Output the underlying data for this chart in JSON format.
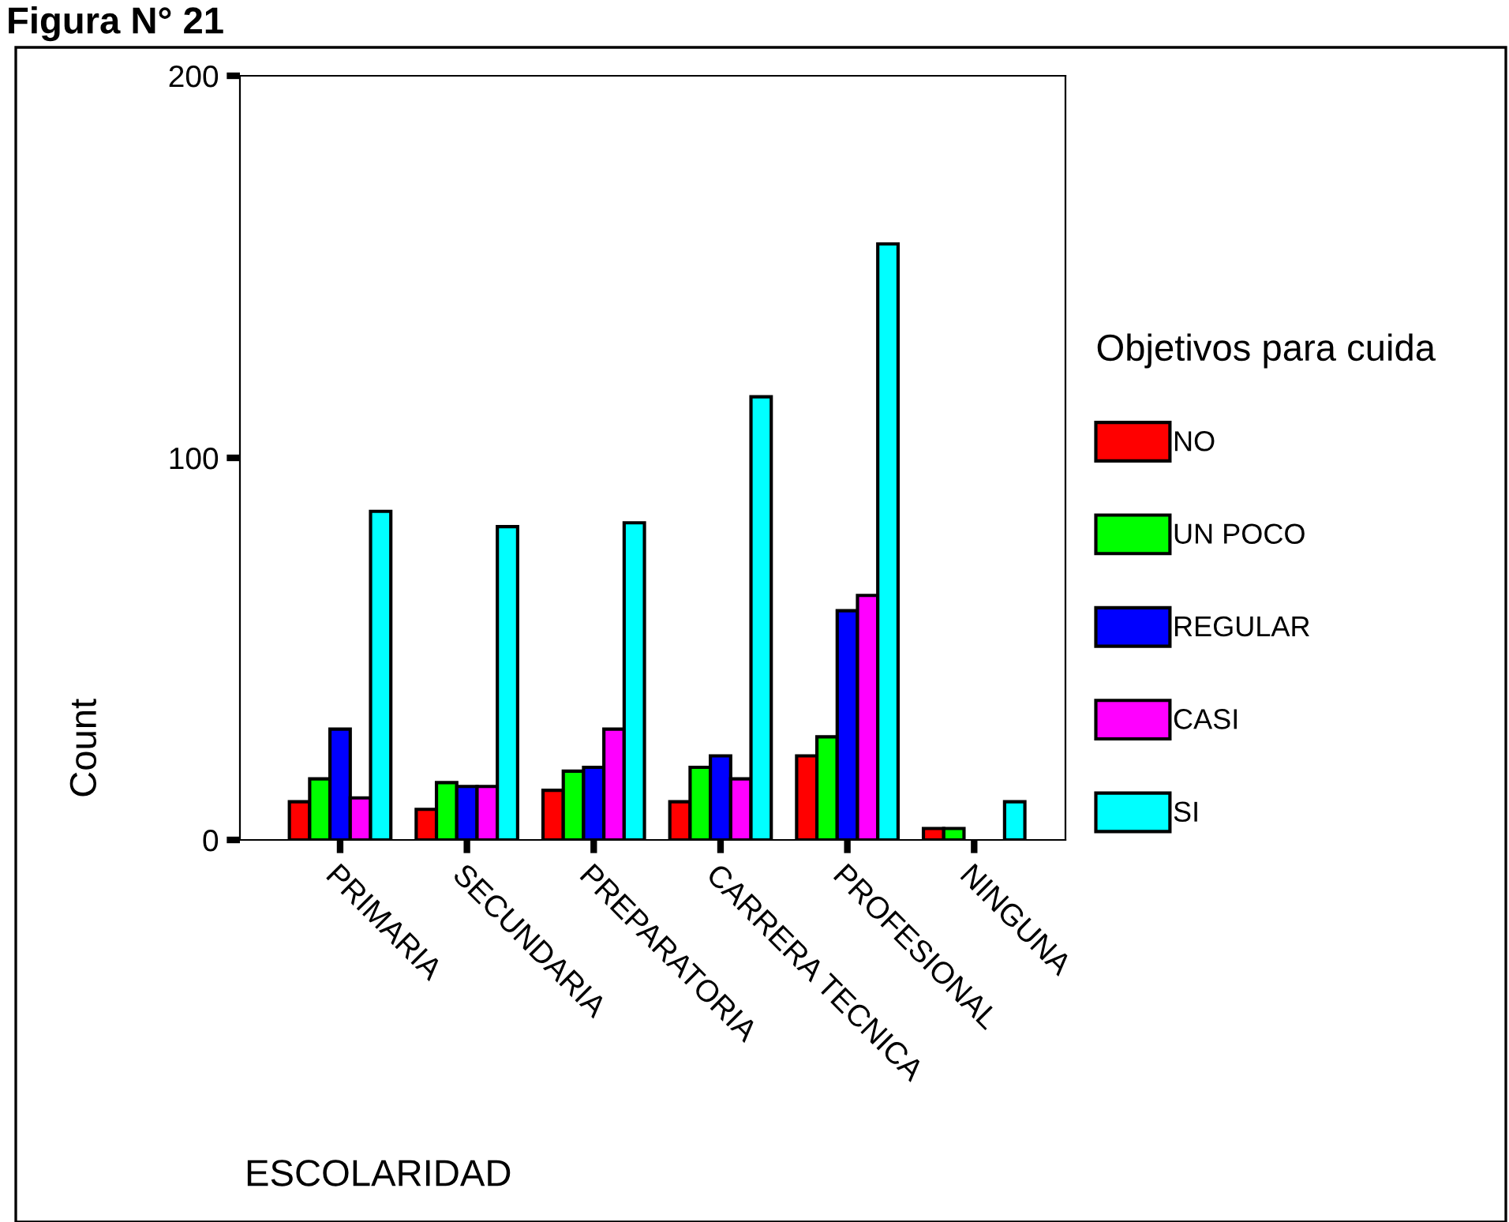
{
  "chart_data": {
    "type": "bar",
    "title": "Figura N° 21",
    "categories": [
      "PRIMARIA",
      "SECUNDARIA",
      "PREPARATORIA",
      "CARRERA TECNICA",
      "PROFESIONAL",
      "NINGUNA"
    ],
    "series": [
      {
        "name": "NO",
        "color": "#ff0000",
        "values": [
          10,
          8,
          13,
          10,
          22,
          3
        ]
      },
      {
        "name": "UN POCO",
        "color": "#00ff00",
        "values": [
          16,
          15,
          18,
          19,
          27,
          3
        ]
      },
      {
        "name": "REGULAR",
        "color": "#0000ff",
        "values": [
          29,
          14,
          19,
          22,
          60,
          null
        ]
      },
      {
        "name": "CASI",
        "color": "#ff00ff",
        "values": [
          11,
          14,
          29,
          16,
          64,
          null
        ]
      },
      {
        "name": "SI",
        "color": "#00ffff",
        "values": [
          86,
          82,
          83,
          116,
          156,
          10
        ]
      }
    ],
    "xlabel": "ESCOLARIDAD",
    "ylabel": "Count",
    "legend_title": "Objetivos para cuida",
    "ylim": [
      0,
      200
    ],
    "yticks": [
      0,
      100,
      200
    ],
    "legend": "right",
    "grid": false
  }
}
